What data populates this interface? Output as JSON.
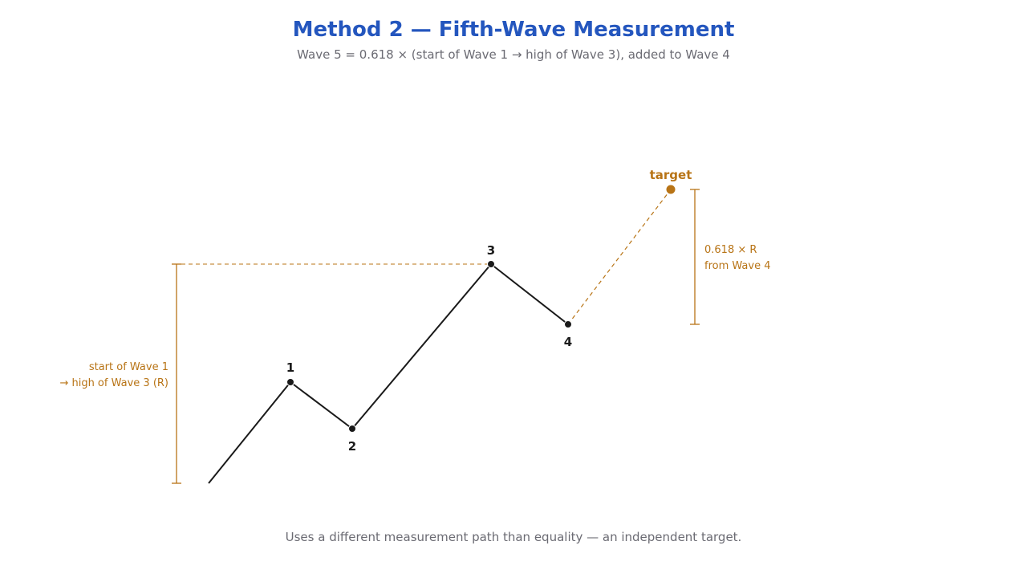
{
  "header": {
    "title": "Method 2 — Fifth-Wave Measurement",
    "subtitle": "Wave 5 = 0.618 × (start of Wave 1 → high of Wave 3), added to Wave 4"
  },
  "diagram": {
    "colors": {
      "wave_line": "#1a1a1a",
      "accent": "#b87416",
      "title": "#2456be",
      "muted": "#6b6b73"
    },
    "waves": [
      {
        "id": "1",
        "label": "1"
      },
      {
        "id": "2",
        "label": "2"
      },
      {
        "id": "3",
        "label": "3"
      },
      {
        "id": "4",
        "label": "4"
      }
    ],
    "target_label": "target",
    "range_annotation": {
      "line1": "start of Wave 1",
      "line2": "→ high of Wave 3 (R)"
    },
    "projection_annotation": {
      "line1": "0.618 × R",
      "line2": "from Wave 4"
    }
  },
  "footer": {
    "note": "Uses a different measurement path than equality — an independent target."
  }
}
